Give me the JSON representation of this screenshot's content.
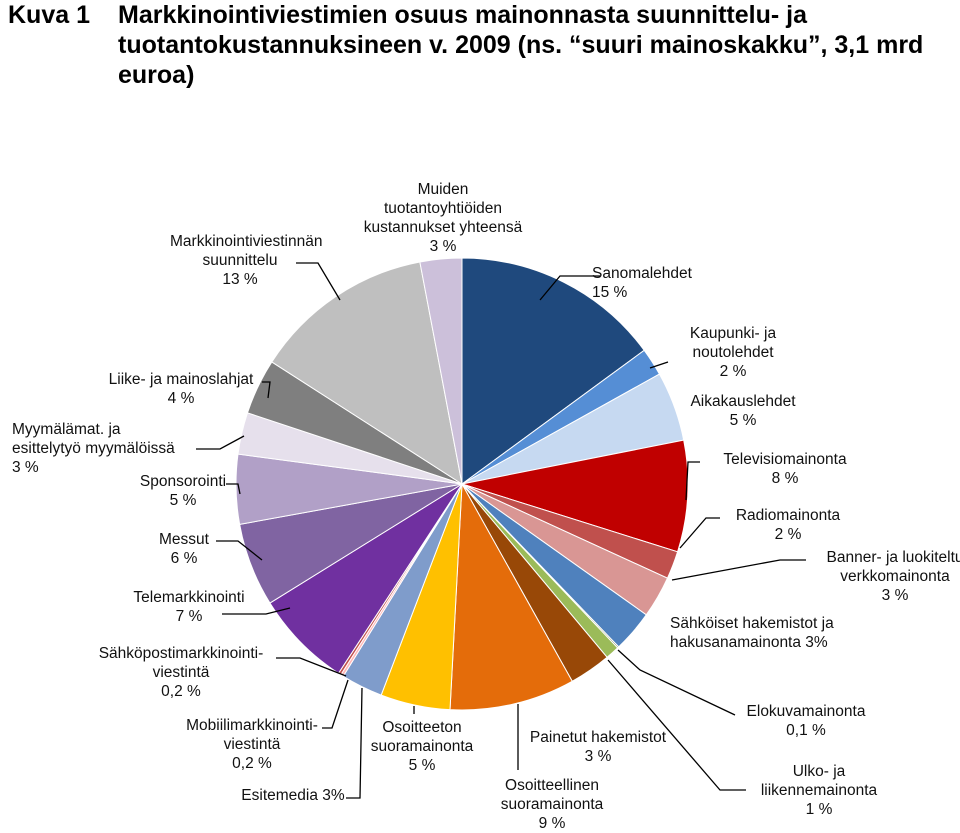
{
  "header": {
    "label": "Kuva 1",
    "title": "Markkinointiviestimien osuus mainonnasta suunnittelu- ja tuotantokustannuksineen v. 2009 (ns. “suuri mainoskakku”, 3,1 mrd euroa)"
  },
  "chart_data": {
    "type": "pie",
    "title": "Markkinointiviestimien osuus mainonnasta suunnittelu- ja tuotantokustannuksineen v. 2009 (ns. “suuri mainoskakku”, 3,1 mrd euroa)",
    "unit": "%",
    "start": "12 o'clock",
    "direction": "clockwise",
    "slices": [
      {
        "key": "sanomalehdet",
        "value": 15,
        "label_lines": [
          "Sanomalehdet",
          "15 %"
        ],
        "color": "#1F497D"
      },
      {
        "key": "kaupunkilehdet",
        "value": 2,
        "label_lines": [
          "Kaupunki- ja",
          "noutolehdet",
          "2 %"
        ],
        "color": "#558ED5"
      },
      {
        "key": "aikakauslehdet",
        "value": 5,
        "label_lines": [
          "Aikakauslehdet",
          "5 %"
        ],
        "color": "#C6D9F1"
      },
      {
        "key": "televisio",
        "value": 8,
        "label_lines": [
          "Televisiomainonta",
          "8 %"
        ],
        "color": "#C00000"
      },
      {
        "key": "radio",
        "value": 2,
        "label_lines": [
          "Radiomainonta",
          "2 %"
        ],
        "color": "#C0504D"
      },
      {
        "key": "banneri",
        "value": 3,
        "label_lines": [
          "Banner- ja luokiteltu",
          "verkkomainonta",
          "3 %"
        ],
        "color": "#D99694"
      },
      {
        "key": "hakemistot_sahk",
        "value": 3,
        "label_lines": [
          "Sähköiset hakemistot ja",
          "hakusanamainonta 3%"
        ],
        "color": "#4F81BD"
      },
      {
        "key": "elokuva",
        "value": 0.1,
        "label_lines": [
          "Elokuvamainonta",
          "0,1 %"
        ],
        "color": "#4F6228"
      },
      {
        "key": "ulko",
        "value": 1,
        "label_lines": [
          "Ulko- ja",
          "liikennemainonta",
          "1 %"
        ],
        "color": "#9BBB59"
      },
      {
        "key": "painetut",
        "value": 3,
        "label_lines": [
          "Painetut hakemistot",
          "3 %"
        ],
        "color": "#984807"
      },
      {
        "key": "osoitteellinen",
        "value": 9,
        "label_lines": [
          "Osoitteellinen",
          "suoramainonta",
          "9 %"
        ],
        "color": "#E46C0A"
      },
      {
        "key": "osoitteeton",
        "value": 5,
        "label_lines": [
          "Osoitteeton",
          "suoramainonta",
          "5 %"
        ],
        "color": "#FFC000"
      },
      {
        "key": "esitemedia",
        "value": 3,
        "label_lines": [
          "Esitemedia 3%"
        ],
        "color": "#7F9CCB"
      },
      {
        "key": "mobiili",
        "value": 0.2,
        "label_lines": [
          "Mobiilimarkkinointi-",
          "viestintä",
          "0,2 %"
        ],
        "color": "#FFB6B6"
      },
      {
        "key": "sahkoposti",
        "value": 0.2,
        "label_lines": [
          "Sähköpostimarkkinointi-",
          "viestintä",
          "0,2 %"
        ],
        "color": "#C0504D"
      },
      {
        "key": "telemarkkinointi",
        "value": 7,
        "label_lines": [
          "Telemarkkinointi",
          "7 %"
        ],
        "color": "#7030A0"
      },
      {
        "key": "messut",
        "value": 6,
        "label_lines": [
          "Messut",
          "6 %"
        ],
        "color": "#8064A2"
      },
      {
        "key": "sponsorointi",
        "value": 5,
        "label_lines": [
          "Sponsorointi",
          "5 %"
        ],
        "color": "#B1A0C7"
      },
      {
        "key": "myymalamat",
        "value": 3,
        "label_lines": [
          "Myymälämat. ja",
          "esittelytyö myymälöissä",
          "3 %"
        ],
        "color": "#E6E0EC"
      },
      {
        "key": "liikelahjat",
        "value": 4,
        "label_lines": [
          "Liike- ja mainoslahjat",
          "4 %"
        ],
        "color": "#7F7F7F"
      },
      {
        "key": "suunnittelu",
        "value": 13,
        "label_lines": [
          "Markkinointiviestinnän",
          "suunnittelu",
          "13 %"
        ],
        "color": "#BFBFBF"
      },
      {
        "key": "tuotanto",
        "value": 3,
        "label_lines": [
          "Muiden",
          "tuotantoyhtiöiden",
          "kustannukset yhteensä",
          "3 %"
        ],
        "color": "#CCC0DA"
      }
    ]
  }
}
